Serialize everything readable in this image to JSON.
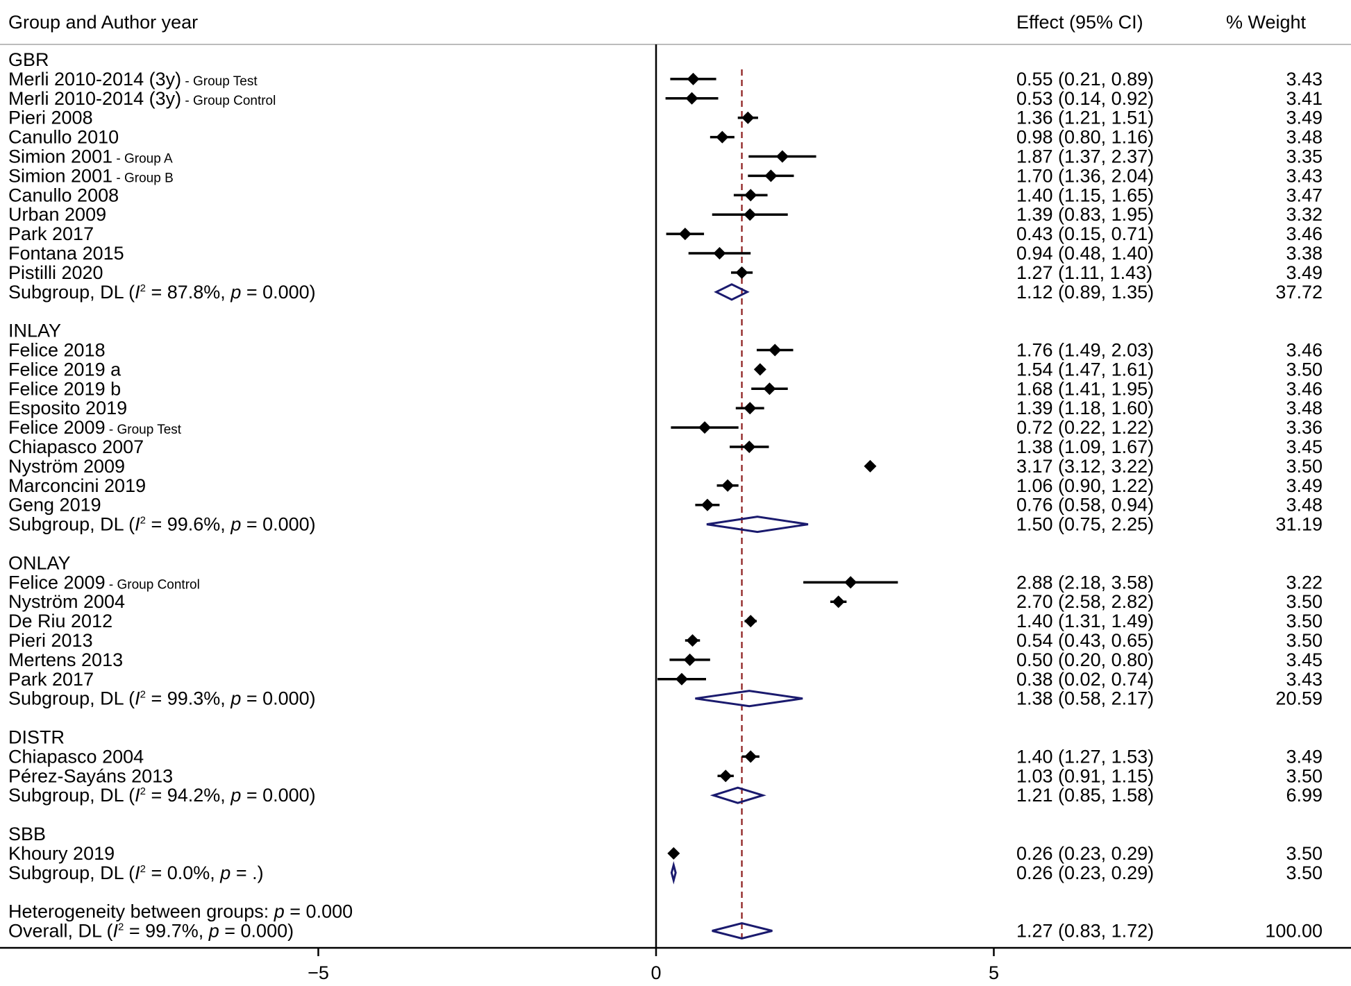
{
  "chart_data": {
    "type": "forest",
    "headers": {
      "study": "Group and Author year",
      "effect": "Effect (95% CI)",
      "weight": "% Weight"
    },
    "xlim": [
      -10,
      10
    ],
    "xticks": [
      -5,
      0,
      5
    ],
    "xtick_labels": [
      "−5",
      "0",
      "5"
    ],
    "reference_line": 0,
    "overall_effect_line": 1.27,
    "colors": {
      "study_marker": "#000000",
      "diamond": "#1a1a6e",
      "overall_line": "#8b1a1a"
    },
    "rows": [
      {
        "kind": "group",
        "label": "GBR"
      },
      {
        "kind": "study",
        "label": "Merli 2010-2014 (3y)",
        "tag": " - Group Test",
        "effect": 0.55,
        "lo": 0.21,
        "hi": 0.89,
        "text": "0.55 (0.21, 0.89)",
        "weight": "3.43"
      },
      {
        "kind": "study",
        "label": "Merli 2010-2014 (3y)",
        "tag": " - Group Control",
        "effect": 0.53,
        "lo": 0.14,
        "hi": 0.92,
        "text": "0.53 (0.14, 0.92)",
        "weight": "3.41"
      },
      {
        "kind": "study",
        "label": "Pieri 2008",
        "tag": "",
        "effect": 1.36,
        "lo": 1.21,
        "hi": 1.51,
        "text": "1.36 (1.21, 1.51)",
        "weight": "3.49"
      },
      {
        "kind": "study",
        "label": "Canullo 2010",
        "tag": "",
        "effect": 0.98,
        "lo": 0.8,
        "hi": 1.16,
        "text": "0.98 (0.80, 1.16)",
        "weight": "3.48"
      },
      {
        "kind": "study",
        "label": "Simion 2001",
        "tag": " - Group A",
        "effect": 1.87,
        "lo": 1.37,
        "hi": 2.37,
        "text": "1.87 (1.37, 2.37)",
        "weight": "3.35"
      },
      {
        "kind": "study",
        "label": "Simion 2001",
        "tag": " - Group B",
        "effect": 1.7,
        "lo": 1.36,
        "hi": 2.04,
        "text": "1.70 (1.36, 2.04)",
        "weight": "3.43"
      },
      {
        "kind": "study",
        "label": "Canullo 2008",
        "tag": "",
        "effect": 1.4,
        "lo": 1.15,
        "hi": 1.65,
        "text": "1.40 (1.15, 1.65)",
        "weight": "3.47"
      },
      {
        "kind": "study",
        "label": "Urban 2009",
        "tag": "",
        "effect": 1.39,
        "lo": 0.83,
        "hi": 1.95,
        "text": "1.39 (0.83, 1.95)",
        "weight": "3.32"
      },
      {
        "kind": "study",
        "label": "Park 2017",
        "tag": "",
        "effect": 0.43,
        "lo": 0.15,
        "hi": 0.71,
        "text": "0.43 (0.15, 0.71)",
        "weight": "3.46"
      },
      {
        "kind": "study",
        "label": "Fontana 2015",
        "tag": "",
        "effect": 0.94,
        "lo": 0.48,
        "hi": 1.4,
        "text": "0.94 (0.48, 1.40)",
        "weight": "3.38"
      },
      {
        "kind": "study",
        "label": "Pistilli 2020",
        "tag": "",
        "effect": 1.27,
        "lo": 1.11,
        "hi": 1.43,
        "text": "1.27 (1.11, 1.43)",
        "weight": "3.49"
      },
      {
        "kind": "subgroup",
        "label_pre": "Subgroup, DL (",
        "i2": "87.8%",
        "p": "0.000",
        "effect": 1.12,
        "lo": 0.89,
        "hi": 1.35,
        "text": "1.12 (0.89, 1.35)",
        "weight": "37.72"
      },
      {
        "kind": "spacer"
      },
      {
        "kind": "group",
        "label": "INLAY"
      },
      {
        "kind": "study",
        "label": "Felice 2018",
        "tag": "",
        "effect": 1.76,
        "lo": 1.49,
        "hi": 2.03,
        "text": "1.76 (1.49, 2.03)",
        "weight": "3.46"
      },
      {
        "kind": "study",
        "label": "Felice 2019 a",
        "tag": "",
        "effect": 1.54,
        "lo": 1.47,
        "hi": 1.61,
        "text": "1.54 (1.47, 1.61)",
        "weight": "3.50"
      },
      {
        "kind": "study",
        "label": "Felice 2019 b",
        "tag": "",
        "effect": 1.68,
        "lo": 1.41,
        "hi": 1.95,
        "text": "1.68 (1.41, 1.95)",
        "weight": "3.46"
      },
      {
        "kind": "study",
        "label": "Esposito 2019",
        "tag": "",
        "effect": 1.39,
        "lo": 1.18,
        "hi": 1.6,
        "text": "1.39 (1.18, 1.60)",
        "weight": "3.48"
      },
      {
        "kind": "study",
        "label": "Felice 2009",
        "tag": " - Group Test",
        "effect": 0.72,
        "lo": 0.22,
        "hi": 1.22,
        "text": "0.72 (0.22, 1.22)",
        "weight": "3.36"
      },
      {
        "kind": "study",
        "label": "Chiapasco 2007",
        "tag": "",
        "effect": 1.38,
        "lo": 1.09,
        "hi": 1.67,
        "text": "1.38 (1.09, 1.67)",
        "weight": "3.45"
      },
      {
        "kind": "study",
        "label": "Nyström 2009",
        "tag": "",
        "effect": 3.17,
        "lo": 3.12,
        "hi": 3.22,
        "text": "3.17 (3.12, 3.22)",
        "weight": "3.50"
      },
      {
        "kind": "study",
        "label": "Marconcini 2019",
        "tag": "",
        "effect": 1.06,
        "lo": 0.9,
        "hi": 1.22,
        "text": "1.06 (0.90, 1.22)",
        "weight": "3.49"
      },
      {
        "kind": "study",
        "label": "Geng 2019",
        "tag": "",
        "effect": 0.76,
        "lo": 0.58,
        "hi": 0.94,
        "text": "0.76 (0.58, 0.94)",
        "weight": "3.48"
      },
      {
        "kind": "subgroup",
        "label_pre": "Subgroup, DL (",
        "i2": "99.6%",
        "p": "0.000",
        "effect": 1.5,
        "lo": 0.75,
        "hi": 2.25,
        "text": "1.50 (0.75, 2.25)",
        "weight": "31.19"
      },
      {
        "kind": "spacer"
      },
      {
        "kind": "group",
        "label": "ONLAY"
      },
      {
        "kind": "study",
        "label": "Felice 2009",
        "tag": " - Group Control",
        "effect": 2.88,
        "lo": 2.18,
        "hi": 3.58,
        "text": "2.88 (2.18, 3.58)",
        "weight": "3.22"
      },
      {
        "kind": "study",
        "label": "Nyström 2004",
        "tag": "",
        "effect": 2.7,
        "lo": 2.58,
        "hi": 2.82,
        "text": "2.70 (2.58, 2.82)",
        "weight": "3.50"
      },
      {
        "kind": "study",
        "label": "De Riu 2012",
        "tag": "",
        "effect": 1.4,
        "lo": 1.31,
        "hi": 1.49,
        "text": "1.40 (1.31, 1.49)",
        "weight": "3.50"
      },
      {
        "kind": "study",
        "label": "Pieri 2013",
        "tag": "",
        "effect": 0.54,
        "lo": 0.43,
        "hi": 0.65,
        "text": "0.54 (0.43, 0.65)",
        "weight": "3.50"
      },
      {
        "kind": "study",
        "label": "Mertens 2013",
        "tag": "",
        "effect": 0.5,
        "lo": 0.2,
        "hi": 0.8,
        "text": "0.50 (0.20, 0.80)",
        "weight": "3.45"
      },
      {
        "kind": "study",
        "label": "Park 2017",
        "tag": "",
        "effect": 0.38,
        "lo": 0.02,
        "hi": 0.74,
        "text": "0.38 (0.02, 0.74)",
        "weight": "3.43"
      },
      {
        "kind": "subgroup",
        "label_pre": "Subgroup, DL (",
        "i2": "99.3%",
        "p": "0.000",
        "effect": 1.38,
        "lo": 0.58,
        "hi": 2.17,
        "text": "1.38 (0.58, 2.17)",
        "weight": "20.59"
      },
      {
        "kind": "spacer"
      },
      {
        "kind": "group",
        "label": "DISTR"
      },
      {
        "kind": "study",
        "label": "Chiapasco 2004",
        "tag": "",
        "effect": 1.4,
        "lo": 1.27,
        "hi": 1.53,
        "text": "1.40 (1.27, 1.53)",
        "weight": "3.49"
      },
      {
        "kind": "study",
        "label": "Pérez-Sayáns 2013",
        "tag": "",
        "effect": 1.03,
        "lo": 0.91,
        "hi": 1.15,
        "text": "1.03 (0.91, 1.15)",
        "weight": "3.50"
      },
      {
        "kind": "subgroup",
        "label_pre": "Subgroup, DL (",
        "i2": "94.2%",
        "p": "0.000",
        "effect": 1.21,
        "lo": 0.85,
        "hi": 1.58,
        "text": "1.21 (0.85, 1.58)",
        "weight": "6.99"
      },
      {
        "kind": "spacer"
      },
      {
        "kind": "group",
        "label": "SBB"
      },
      {
        "kind": "study",
        "label": "Khoury 2019",
        "tag": "",
        "effect": 0.26,
        "lo": 0.23,
        "hi": 0.29,
        "text": "0.26 (0.23, 0.29)",
        "weight": "3.50"
      },
      {
        "kind": "subgroup",
        "label_pre": "Subgroup, DL (",
        "i2": "0.0%",
        "p": ".",
        "effect": 0.26,
        "lo": 0.23,
        "hi": 0.29,
        "text": "0.26 (0.23, 0.29)",
        "weight": "3.50"
      },
      {
        "kind": "spacer"
      },
      {
        "kind": "het",
        "label_pre": "Heterogeneity between groups: ",
        "p": "0.000"
      },
      {
        "kind": "overall",
        "label_pre": "Overall, DL (",
        "i2": "99.7%",
        "p": "0.000",
        "effect": 1.27,
        "lo": 0.83,
        "hi": 1.72,
        "text": "1.27 (0.83, 1.72)",
        "weight": "100.00"
      }
    ]
  }
}
